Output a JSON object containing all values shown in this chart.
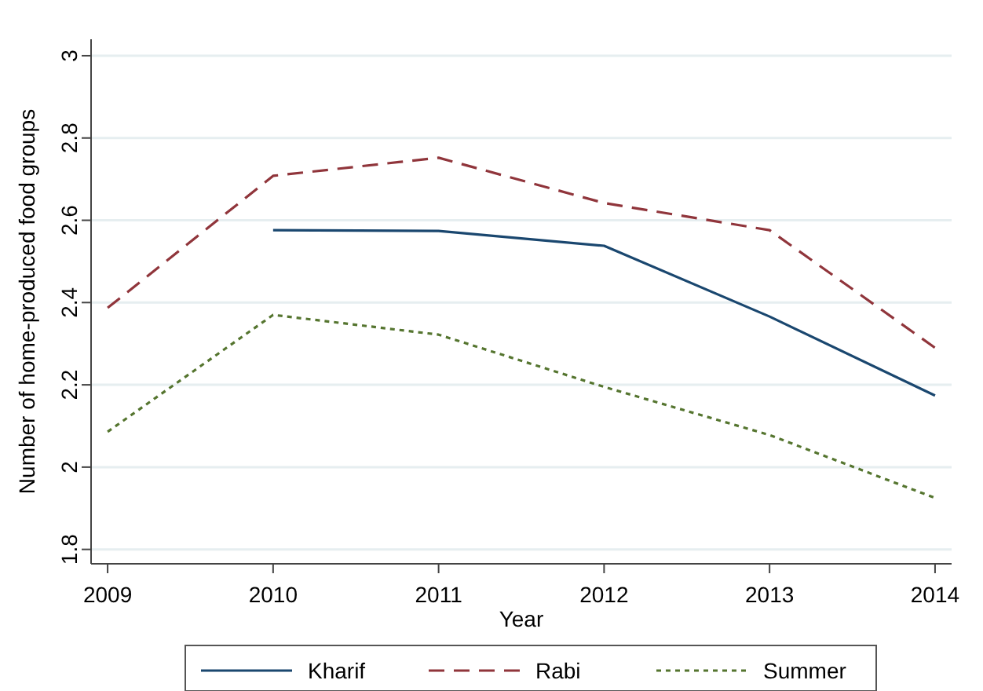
{
  "chart_data": {
    "type": "line",
    "xlabel": "Year",
    "ylabel": "Number of home-produced food groups",
    "x": [
      2009,
      2010,
      2011,
      2012,
      2013,
      2014
    ],
    "series": [
      {
        "name": "Kharif",
        "color": "#1a476f",
        "line_style": "solid",
        "values": [
          null,
          2.576,
          2.574,
          2.538,
          2.366,
          2.174
        ]
      },
      {
        "name": "Rabi",
        "color": "#90353b",
        "line_style": "dashed",
        "values": [
          2.387,
          2.708,
          2.752,
          2.642,
          2.576,
          2.29
        ]
      },
      {
        "name": "Summer",
        "color": "#55752f",
        "line_style": "dotted",
        "values": [
          2.086,
          2.37,
          2.322,
          2.195,
          2.078,
          1.925
        ]
      }
    ],
    "xlim": [
      2008.9,
      2014.1
    ],
    "xticks": [
      2009,
      2010,
      2011,
      2012,
      2013,
      2014
    ],
    "ylim": [
      1.765,
      3.04
    ],
    "yticks": [
      1.8,
      2,
      2.2,
      2.4,
      2.6,
      2.8,
      3
    ],
    "grid": "y",
    "legend": "bottom",
    "marker": "none"
  }
}
